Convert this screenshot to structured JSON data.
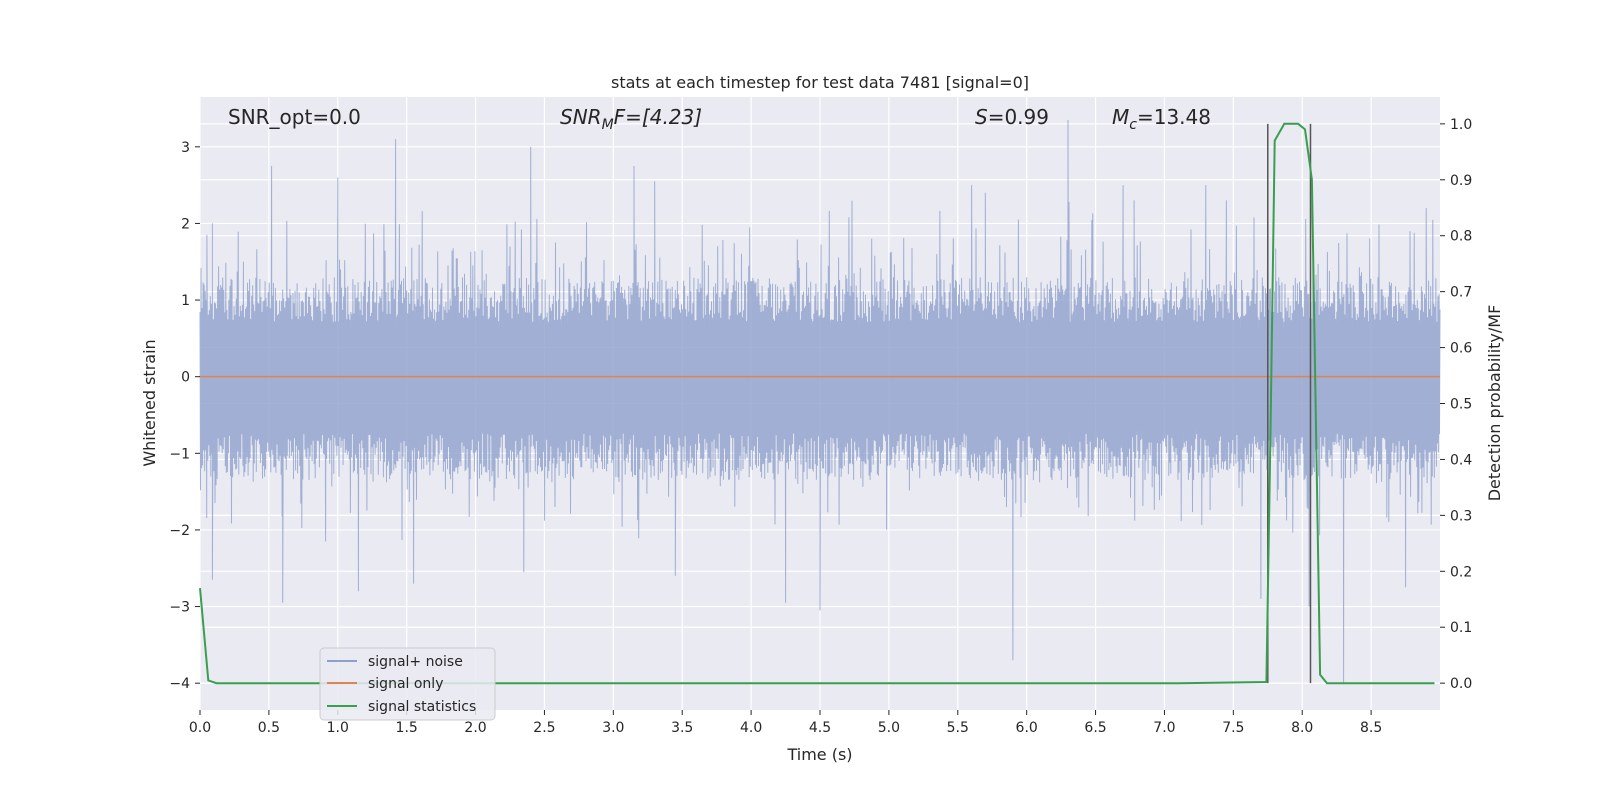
{
  "chart_data": {
    "type": "line",
    "title": "stats at each timestep for test data 7481 [signal=0]",
    "xlabel": "Time (s)",
    "ylabel": "Whitened strain",
    "y2label": "Detection probability/MF",
    "xlim": [
      0.0,
      9.0
    ],
    "ylim": [
      -4.35,
      3.65
    ],
    "y2lim": [
      -0.048,
      1.048
    ],
    "xticks": [
      "0.0",
      "0.5",
      "1.0",
      "1.5",
      "2.0",
      "2.5",
      "3.0",
      "3.5",
      "4.0",
      "4.5",
      "5.0",
      "5.5",
      "6.0",
      "6.5",
      "7.0",
      "7.5",
      "8.0",
      "8.5"
    ],
    "yticks": [
      "3",
      "2",
      "1",
      "0",
      "−1",
      "−2",
      "−3",
      "−4"
    ],
    "y2ticks": [
      "1.0",
      "0.9",
      "0.8",
      "0.7",
      "0.6",
      "0.5",
      "0.4",
      "0.3",
      "0.2",
      "0.1",
      "0.0"
    ],
    "grid": true,
    "legend_position": "lower-left",
    "annotations": {
      "snr_opt": "SNR_opt=0.0",
      "snr_mf_sym": "SNR",
      "snr_mf_sub": "M",
      "snr_mf_rest": "F=[4.23]",
      "s_sym": "S",
      "s_rest": "=0.99",
      "mc_sym": "M",
      "mc_sub": "c",
      "mc_rest": "=13.48"
    },
    "series": [
      {
        "name": "signal+ noise",
        "axis": "left",
        "color": "#8da0cb",
        "style": "noise",
        "envelope": {
          "upper": 1.3,
          "lower": -1.35
        },
        "spikes": [
          {
            "x": 0.09,
            "y": 2.0
          },
          {
            "x": 0.09,
            "y": -2.65
          },
          {
            "x": 0.6,
            "y": -2.95
          },
          {
            "x": 0.52,
            "y": 2.75
          },
          {
            "x": 1.0,
            "y": 2.6
          },
          {
            "x": 1.15,
            "y": -2.8
          },
          {
            "x": 1.42,
            "y": 3.1
          },
          {
            "x": 1.55,
            "y": -2.7
          },
          {
            "x": 2.4,
            "y": 3.0
          },
          {
            "x": 2.35,
            "y": -2.55
          },
          {
            "x": 3.15,
            "y": 2.75
          },
          {
            "x": 3.45,
            "y": -2.6
          },
          {
            "x": 4.25,
            "y": -2.95
          },
          {
            "x": 4.5,
            "y": -3.05
          },
          {
            "x": 5.7,
            "y": 2.4
          },
          {
            "x": 5.9,
            "y": -3.7
          },
          {
            "x": 6.3,
            "y": 3.35
          },
          {
            "x": 6.7,
            "y": 2.5
          },
          {
            "x": 7.7,
            "y": -2.9
          },
          {
            "x": 7.75,
            "y": 2.3
          },
          {
            "x": 8.05,
            "y": -3.0
          },
          {
            "x": 8.3,
            "y": -4.0
          },
          {
            "x": 8.75,
            "y": -2.75
          },
          {
            "x": 8.9,
            "y": 2.2
          },
          {
            "x": 6.78,
            "y": 2.3
          },
          {
            "x": 7.3,
            "y": 2.5
          },
          {
            "x": 7.45,
            "y": 2.3
          },
          {
            "x": 5.6,
            "y": 2.5
          },
          {
            "x": 3.3,
            "y": 2.55
          },
          {
            "x": 0.05,
            "y": 1.85
          }
        ]
      },
      {
        "name": "signal only",
        "axis": "left",
        "color": "#dd8452",
        "points": [
          [
            0.0,
            0.0
          ],
          [
            9.0,
            0.0
          ]
        ]
      },
      {
        "name": "signal statistics",
        "axis": "right",
        "color": "#3a9e4f",
        "points": [
          [
            0.0,
            0.17
          ],
          [
            0.06,
            0.005
          ],
          [
            0.12,
            0.0
          ],
          [
            7.1,
            0.0
          ],
          [
            7.74,
            0.002
          ],
          [
            7.77,
            0.45
          ],
          [
            7.8,
            0.97
          ],
          [
            7.87,
            1.0
          ],
          [
            7.97,
            1.0
          ],
          [
            8.02,
            0.99
          ],
          [
            8.07,
            0.9
          ],
          [
            8.13,
            0.015
          ],
          [
            8.18,
            0.0
          ],
          [
            8.96,
            0.0
          ]
        ]
      }
    ],
    "vlines": [
      {
        "x": 7.75,
        "ymin": 0.0,
        "ymax": 1.0,
        "color": "#555555"
      },
      {
        "x": 8.06,
        "ymin": 0.0,
        "ymax": 1.0,
        "color": "#555555"
      }
    ]
  }
}
